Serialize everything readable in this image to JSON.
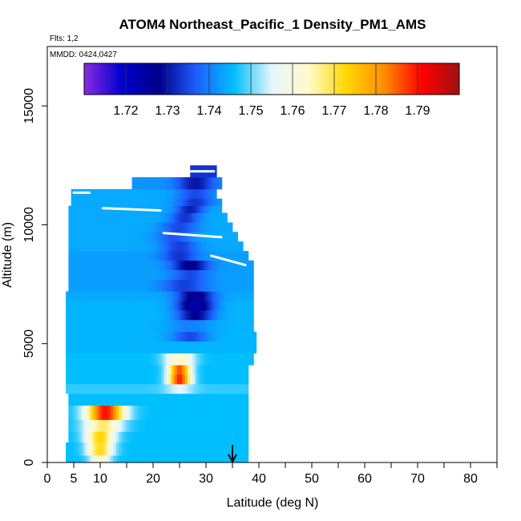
{
  "chart_data": {
    "type": "heatmap",
    "title": "ATOM4 Northeast_Pacific_1 Density_PM1_AMS",
    "annotations": {
      "flights": "Flts: 1,2",
      "dates": "MMDD: 0424,0427"
    },
    "xlabel": "Latitude (deg N)",
    "ylabel": "Altitude (m)",
    "xlim": [
      0,
      85
    ],
    "ylim": [
      0,
      17500
    ],
    "x_ticks": [
      "0",
      "5",
      "10",
      "20",
      "30",
      "40",
      "50",
      "60",
      "70",
      "80"
    ],
    "x_tick_values": [
      0,
      5,
      10,
      20,
      30,
      40,
      50,
      60,
      70,
      80
    ],
    "y_ticks": [
      "0",
      "5000",
      "10000",
      "15000"
    ],
    "y_tick_values": [
      0,
      5000,
      10000,
      15000
    ],
    "colorbar": {
      "range": [
        1.71,
        1.8
      ],
      "tick_labels": [
        "1.72",
        "1.73",
        "1.74",
        "1.75",
        "1.76",
        "1.77",
        "1.78",
        "1.79"
      ],
      "tick_values": [
        1.72,
        1.73,
        1.74,
        1.75,
        1.76,
        1.77,
        1.78,
        1.79
      ],
      "colors": [
        "#8a2be2",
        "#0000cd",
        "#00008b",
        "#1e5fff",
        "#00bfff",
        "#e6f6ff",
        "#fffac8",
        "#ffd700",
        "#ff8c00",
        "#ff0000",
        "#a01010"
      ]
    },
    "arrow_marker_latitude": 35,
    "bands": [
      {
        "alt": [
          0,
          300
        ],
        "lat": [
          3.5,
          38
        ],
        "base": 1.746,
        "peaks": [
          {
            "lat": 10,
            "value": 1.762,
            "width": 3
          }
        ]
      },
      {
        "alt": [
          300,
          850
        ],
        "lat": [
          3.5,
          38
        ],
        "base": 1.746,
        "peaks": [
          {
            "lat": 10,
            "value": 1.772,
            "width": 3.5
          }
        ]
      },
      {
        "alt": [
          850,
          1300
        ],
        "lat": [
          4,
          38
        ],
        "base": 1.746,
        "peaks": [
          {
            "lat": 10,
            "value": 1.773,
            "width": 4
          }
        ]
      },
      {
        "alt": [
          1300,
          1800
        ],
        "lat": [
          4,
          38
        ],
        "base": 1.746,
        "peaks": [
          {
            "lat": 10.5,
            "value": 1.768,
            "width": 5
          }
        ]
      },
      {
        "alt": [
          1800,
          2400
        ],
        "lat": [
          4,
          38
        ],
        "base": 1.746,
        "peaks": [
          {
            "lat": 11,
            "value": 1.79,
            "width": 5
          }
        ]
      },
      {
        "alt": [
          2400,
          2900
        ],
        "lat": [
          4,
          38
        ],
        "base": 1.746,
        "peaks": []
      },
      {
        "alt": [
          2900,
          3300
        ],
        "lat": [
          3.5,
          38
        ],
        "base": 1.748,
        "peaks": [
          {
            "lat": 25,
            "value": 1.755,
            "width": 4
          }
        ]
      },
      {
        "alt": [
          3300,
          3700
        ],
        "lat": [
          3.5,
          38
        ],
        "base": 1.746,
        "peaks": [
          {
            "lat": 25,
            "value": 1.789,
            "width": 3
          }
        ]
      },
      {
        "alt": [
          3700,
          4100
        ],
        "lat": [
          3.5,
          38
        ],
        "base": 1.746,
        "peaks": [
          {
            "lat": 25,
            "value": 1.786,
            "width": 3
          }
        ]
      },
      {
        "alt": [
          4100,
          4600
        ],
        "lat": [
          3.5,
          39
        ],
        "base": 1.746,
        "peaks": [
          {
            "lat": 25,
            "value": 1.764,
            "width": 4
          }
        ]
      },
      {
        "alt": [
          4600,
          5100
        ],
        "lat": [
          3.5,
          39.5
        ],
        "base": 1.745,
        "peaks": []
      },
      {
        "alt": [
          5100,
          5500
        ],
        "lat": [
          3.5,
          39.5
        ],
        "base": 1.745,
        "peaks": [
          {
            "lat": 27,
            "value": 1.735,
            "width": 5
          }
        ]
      },
      {
        "alt": [
          5500,
          6000
        ],
        "lat": [
          3.5,
          39
        ],
        "base": 1.745,
        "peaks": [
          {
            "lat": 27,
            "value": 1.74,
            "width": 6
          }
        ]
      },
      {
        "alt": [
          6000,
          6400
        ],
        "lat": [
          3.5,
          39
        ],
        "base": 1.745,
        "peaks": [
          {
            "lat": 28,
            "value": 1.728,
            "width": 5
          }
        ]
      },
      {
        "alt": [
          6400,
          6800
        ],
        "lat": [
          3.5,
          39
        ],
        "base": 1.745,
        "peaks": [
          {
            "lat": 28,
            "value": 1.723,
            "width": 5
          }
        ]
      },
      {
        "alt": [
          6800,
          7200
        ],
        "lat": [
          3.5,
          39
        ],
        "base": 1.744,
        "peaks": [
          {
            "lat": 28,
            "value": 1.726,
            "width": 5
          }
        ]
      },
      {
        "alt": [
          7200,
          7700
        ],
        "lat": [
          4,
          39
        ],
        "base": 1.743,
        "peaks": [
          {
            "lat": 26,
            "value": 1.734,
            "width": 6
          }
        ]
      },
      {
        "alt": [
          7700,
          8100
        ],
        "lat": [
          4,
          39
        ],
        "base": 1.743,
        "peaks": [
          {
            "lat": 27,
            "value": 1.735,
            "width": 5
          }
        ]
      },
      {
        "alt": [
          8100,
          8500
        ],
        "lat": [
          4,
          39
        ],
        "base": 1.743,
        "peaks": [
          {
            "lat": 27,
            "value": 1.727,
            "width": 5
          }
        ]
      },
      {
        "alt": [
          8500,
          8900
        ],
        "lat": [
          4,
          38
        ],
        "base": 1.743,
        "peaks": [
          {
            "lat": 25,
            "value": 1.733,
            "width": 5
          }
        ]
      },
      {
        "alt": [
          8900,
          9300
        ],
        "lat": [
          4,
          37
        ],
        "base": 1.744,
        "peaks": [
          {
            "lat": 25,
            "value": 1.734,
            "width": 5
          }
        ]
      },
      {
        "alt": [
          9300,
          9700
        ],
        "lat": [
          4,
          36
        ],
        "base": 1.744,
        "peaks": [
          {
            "lat": 24,
            "value": 1.736,
            "width": 5
          }
        ]
      },
      {
        "alt": [
          9700,
          10100
        ],
        "lat": [
          4,
          35
        ],
        "base": 1.744,
        "peaks": [
          {
            "lat": 25,
            "value": 1.735,
            "width": 5
          }
        ]
      },
      {
        "alt": [
          10100,
          10500
        ],
        "lat": [
          4,
          34
        ],
        "base": 1.744,
        "peaks": [
          {
            "lat": 26,
            "value": 1.733,
            "width": 4
          }
        ]
      },
      {
        "alt": [
          10500,
          10800
        ],
        "lat": [
          4,
          33
        ],
        "base": 1.744,
        "peaks": [
          {
            "lat": 27,
            "value": 1.731,
            "width": 4
          }
        ]
      },
      {
        "alt": [
          10800,
          11100
        ],
        "lat": [
          4.5,
          33
        ],
        "base": 1.744,
        "peaks": [
          {
            "lat": 28,
            "value": 1.733,
            "width": 5
          }
        ]
      },
      {
        "alt": [
          11100,
          11500
        ],
        "lat": [
          4.5,
          32
        ],
        "base": 1.744,
        "peaks": [
          {
            "lat": 28,
            "value": 1.735,
            "width": 5
          }
        ]
      },
      {
        "alt": [
          11500,
          12000
        ],
        "lat": [
          16,
          33
        ],
        "base": 1.742,
        "peaks": [
          {
            "lat": 28,
            "value": 1.73,
            "width": 5
          }
        ]
      },
      {
        "alt": [
          12000,
          12500
        ],
        "lat": [
          27,
          32
        ],
        "base": 1.733,
        "peaks": []
      }
    ],
    "flight_tracks": [
      {
        "lat": [
          5,
          8
        ],
        "alt": [
          11350,
          11350
        ]
      },
      {
        "lat": [
          10.5,
          21.5
        ],
        "alt": [
          10700,
          10600
        ]
      },
      {
        "lat": [
          22,
          33
        ],
        "alt": [
          9650,
          9480
        ]
      },
      {
        "lat": [
          31,
          37.5
        ],
        "alt": [
          8700,
          8300
        ]
      },
      {
        "lat": [
          27,
          31.5
        ],
        "alt": [
          12250,
          12250
        ]
      }
    ]
  }
}
